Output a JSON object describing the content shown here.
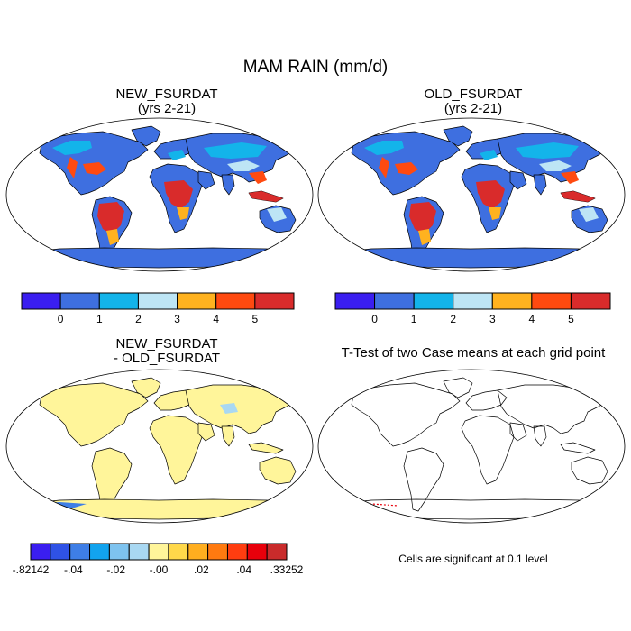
{
  "title": "MAM RAIN (mm/d)",
  "panels": [
    {
      "id": "new",
      "title_line1": "NEW_FSURDAT",
      "title_line2": "(yrs 2-21)"
    },
    {
      "id": "old",
      "title_line1": "OLD_FSURDAT",
      "title_line2": "(yrs 2-21)"
    },
    {
      "id": "diff",
      "title_line1": "NEW_FSURDAT",
      "title_line2": "- OLD_FSURDAT"
    },
    {
      "id": "ttest",
      "title_line1": "T-Test of two Case means at each grid point",
      "title_line2": ""
    }
  ],
  "colorbar_rain": {
    "colors": [
      "#3a1ef0",
      "#3e6fe0",
      "#13b4ea",
      "#bde5f5",
      "#ffb21f",
      "#ff4a10",
      "#d92b2b"
    ],
    "labels": [
      "0",
      "1",
      "2",
      "3",
      "4",
      "5"
    ]
  },
  "colorbar_diff": {
    "colors": [
      "#3a1ef0",
      "#2f52e6",
      "#3e7ee6",
      "#12a3ee",
      "#7ec3ef",
      "#a9d8f2",
      "#fff59a",
      "#ffd84a",
      "#ffae1f",
      "#ff7a10",
      "#ff3d10",
      "#e8000b",
      "#c92b2b"
    ],
    "labels": [
      "-.82142",
      "-.04",
      "-.02",
      "-.00",
      ".02",
      ".04",
      ".33252"
    ]
  },
  "map_colors": {
    "ocean": "#ffffff",
    "rain_low": "#3e6fe0",
    "rain_mid": "#13b4ea",
    "rain_light": "#bde5f5",
    "rain_high": "#ff4a10",
    "rain_vhigh": "#d92b2b",
    "rain_orange": "#ffb21f",
    "diff_zero": "#fff59a",
    "diff_light_blue": "#a9d8f2"
  },
  "significance_note": "Cells are significant at 0.1 level"
}
